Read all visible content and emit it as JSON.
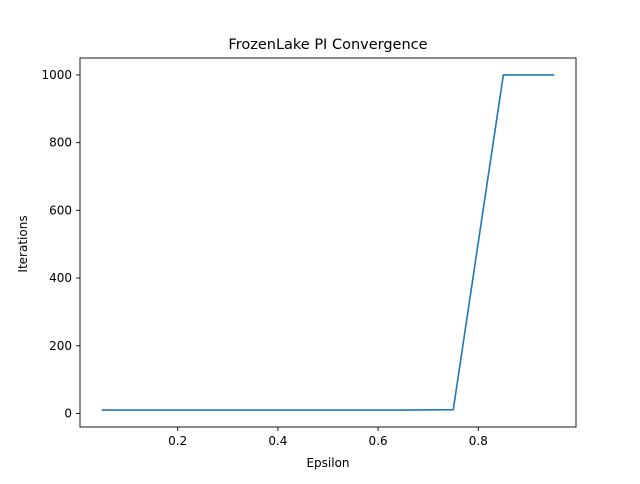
{
  "chart_data": {
    "type": "line",
    "title": "FrozenLake PI Convergence",
    "xlabel": "Epsilon",
    "ylabel": "Iterations",
    "xlim": [
      0.005,
      0.995
    ],
    "ylim": [
      -40,
      1050
    ],
    "xticks": [
      0.2,
      0.4,
      0.6,
      0.8
    ],
    "xtick_labels": [
      "0.2",
      "0.4",
      "0.6",
      "0.8"
    ],
    "yticks": [
      0,
      200,
      400,
      600,
      800,
      1000
    ],
    "ytick_labels": [
      "0",
      "200",
      "400",
      "600",
      "800",
      "1000"
    ],
    "grid": false,
    "series": [
      {
        "color": "#1f77b4",
        "x": [
          0.05,
          0.15,
          0.25,
          0.35,
          0.45,
          0.55,
          0.65,
          0.75,
          0.85,
          0.95
        ],
        "y": [
          10,
          10,
          10,
          10,
          10,
          10,
          10,
          11,
          1000,
          1000
        ]
      }
    ]
  }
}
